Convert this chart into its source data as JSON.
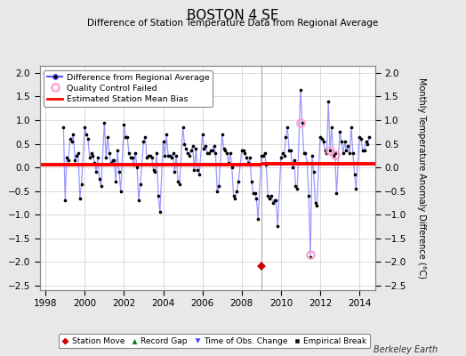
{
  "title": "BOSTON 4 SE",
  "subtitle": "Difference of Station Temperature Data from Regional Average",
  "ylabel": "Monthly Temperature Anomaly Difference (°C)",
  "background_color": "#e8e8e8",
  "plot_bg_color": "#ffffff",
  "xlim": [
    1997.7,
    2014.8
  ],
  "ylim": [
    -2.6,
    2.15
  ],
  "bias_value1": 0.05,
  "bias_value2": 0.07,
  "bias_seg1": [
    1997.7,
    2009.0
  ],
  "bias_seg2": [
    2009.0,
    2014.8
  ],
  "vertical_line_x": 2009.0,
  "station_move_x": 2009.0,
  "station_move_y": -2.1,
  "qc_fail_points": [
    [
      2011.0,
      0.95
    ],
    [
      2011.5,
      -1.85
    ],
    [
      2012.5,
      0.35
    ],
    [
      2012.75,
      0.27
    ]
  ],
  "series_x": [
    1998.917,
    1999.0,
    1999.083,
    1999.167,
    1999.25,
    1999.333,
    1999.417,
    1999.5,
    1999.583,
    1999.667,
    1999.75,
    1999.833,
    2000.0,
    2000.083,
    2000.167,
    2000.25,
    2000.333,
    2000.417,
    2000.5,
    2000.583,
    2000.667,
    2000.75,
    2000.833,
    2001.0,
    2001.083,
    2001.167,
    2001.25,
    2001.333,
    2001.417,
    2001.5,
    2001.583,
    2001.667,
    2001.75,
    2001.833,
    2002.0,
    2002.083,
    2002.167,
    2002.25,
    2002.333,
    2002.417,
    2002.5,
    2002.583,
    2002.667,
    2002.75,
    2002.833,
    2003.0,
    2003.083,
    2003.167,
    2003.25,
    2003.333,
    2003.417,
    2003.5,
    2003.583,
    2003.667,
    2003.75,
    2003.833,
    2004.0,
    2004.083,
    2004.167,
    2004.25,
    2004.333,
    2004.417,
    2004.5,
    2004.583,
    2004.667,
    2004.75,
    2004.833,
    2005.0,
    2005.083,
    2005.167,
    2005.25,
    2005.333,
    2005.417,
    2005.5,
    2005.583,
    2005.667,
    2005.75,
    2005.833,
    2006.0,
    2006.083,
    2006.167,
    2006.25,
    2006.333,
    2006.417,
    2006.5,
    2006.583,
    2006.667,
    2006.75,
    2006.833,
    2007.0,
    2007.083,
    2007.167,
    2007.25,
    2007.333,
    2007.417,
    2007.5,
    2007.583,
    2007.667,
    2007.75,
    2007.833,
    2008.0,
    2008.083,
    2008.167,
    2008.25,
    2008.333,
    2008.417,
    2008.5,
    2008.583,
    2008.667,
    2008.75,
    2008.833,
    2009.0,
    2009.083,
    2009.167,
    2009.25,
    2009.333,
    2009.417,
    2009.5,
    2009.583,
    2009.667,
    2009.75,
    2009.833,
    2010.0,
    2010.083,
    2010.167,
    2010.25,
    2010.333,
    2010.417,
    2010.5,
    2010.583,
    2010.667,
    2010.75,
    2010.833,
    2011.0,
    2011.083,
    2011.167,
    2011.25,
    2011.333,
    2011.417,
    2011.5,
    2011.583,
    2011.667,
    2011.75,
    2011.833,
    2012.0,
    2012.083,
    2012.167,
    2012.25,
    2012.333,
    2012.417,
    2012.5,
    2012.583,
    2012.667,
    2012.75,
    2012.833,
    2013.0,
    2013.083,
    2013.167,
    2013.25,
    2013.333,
    2013.417,
    2013.5,
    2013.583,
    2013.667,
    2013.75,
    2013.833,
    2014.0,
    2014.083,
    2014.167,
    2014.25,
    2014.333,
    2014.417,
    2014.5
  ],
  "series_y": [
    0.85,
    -0.7,
    0.2,
    0.15,
    0.6,
    0.55,
    0.7,
    0.15,
    0.25,
    0.3,
    -0.65,
    -0.35,
    0.85,
    0.7,
    0.6,
    0.2,
    0.3,
    0.25,
    0.1,
    -0.1,
    0.2,
    -0.25,
    -0.4,
    0.95,
    0.2,
    0.65,
    0.3,
    0.1,
    0.15,
    0.15,
    -0.3,
    0.35,
    -0.1,
    -0.5,
    0.9,
    0.65,
    0.65,
    0.3,
    0.2,
    0.2,
    0.05,
    0.3,
    0.0,
    -0.7,
    -0.35,
    0.55,
    0.65,
    0.2,
    0.25,
    0.25,
    0.2,
    -0.05,
    -0.1,
    0.3,
    -0.6,
    -0.95,
    0.55,
    0.25,
    0.7,
    0.25,
    0.25,
    0.2,
    0.3,
    -0.1,
    0.25,
    -0.3,
    -0.35,
    0.85,
    0.5,
    0.4,
    0.3,
    0.25,
    0.35,
    0.45,
    -0.05,
    0.4,
    -0.05,
    -0.15,
    0.7,
    0.4,
    0.45,
    0.3,
    0.3,
    0.35,
    0.35,
    0.45,
    0.3,
    -0.5,
    -0.4,
    0.7,
    0.4,
    0.35,
    0.3,
    0.1,
    0.3,
    0.0,
    -0.6,
    -0.65,
    -0.5,
    -0.3,
    0.35,
    0.35,
    0.3,
    0.2,
    0.1,
    0.2,
    -0.3,
    -0.55,
    -0.55,
    -0.65,
    -1.1,
    0.25,
    0.25,
    0.3,
    0.05,
    -0.6,
    -0.65,
    -0.6,
    -0.75,
    -0.7,
    -0.7,
    -1.25,
    0.2,
    0.3,
    0.25,
    0.65,
    0.85,
    0.35,
    0.35,
    0.0,
    0.15,
    -0.4,
    -0.45,
    1.65,
    0.95,
    0.3,
    0.3,
    0.1,
    -0.6,
    -1.9,
    0.25,
    -0.1,
    -0.75,
    -0.8,
    0.65,
    0.6,
    0.55,
    0.35,
    0.3,
    1.4,
    0.35,
    0.85,
    0.25,
    0.3,
    -0.55,
    0.75,
    0.55,
    0.3,
    0.55,
    0.35,
    0.45,
    0.3,
    0.85,
    0.3,
    -0.15,
    -0.45,
    0.65,
    0.6,
    0.35,
    0.35,
    0.55,
    0.5,
    0.65
  ],
  "line_color": "#5555ff",
  "line_alpha": 0.6,
  "dot_color": "#000000",
  "bias_color": "#ff0000",
  "grid_color": "#cccccc",
  "xticks": [
    1998,
    2000,
    2002,
    2004,
    2006,
    2008,
    2010,
    2012,
    2014
  ],
  "yticks": [
    -2.5,
    -2.0,
    -1.5,
    -1.0,
    -0.5,
    0.0,
    0.5,
    1.0,
    1.5,
    2.0
  ],
  "watermark": "Berkeley Earth",
  "legend1_labels": [
    "Difference from Regional Average",
    "Quality Control Failed",
    "Estimated Station Mean Bias"
  ],
  "legend2_labels": [
    "Station Move",
    "Record Gap",
    "Time of Obs. Change",
    "Empirical Break"
  ]
}
